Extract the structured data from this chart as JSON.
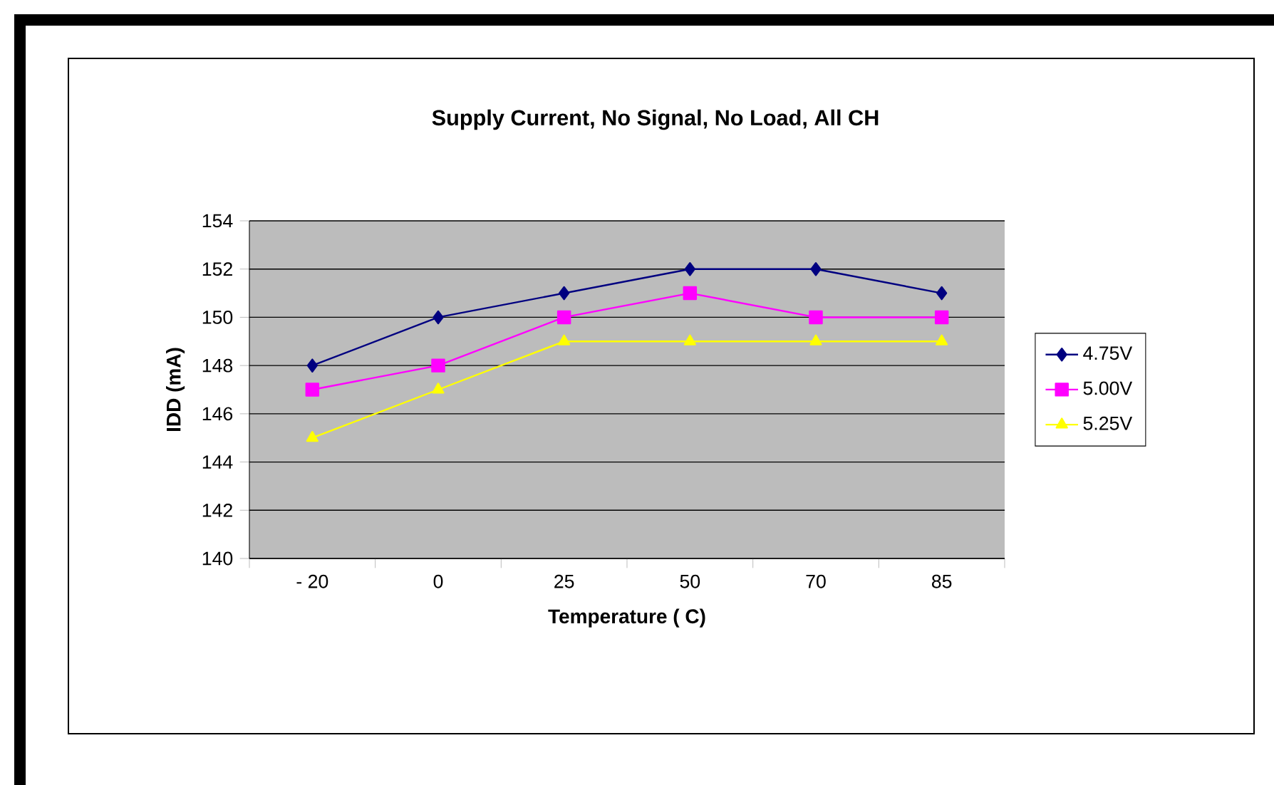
{
  "chart_data": {
    "type": "line",
    "title": "Supply Current, No Signal, No Load, All CH",
    "xlabel": "Temperature ( C)",
    "ylabel": "IDD (mA)",
    "categories": [
      "- 20",
      "0",
      "25",
      "50",
      "70",
      "85"
    ],
    "series": [
      {
        "name": "4.75V",
        "color": "#000080",
        "marker": "diamond",
        "values": [
          148,
          150,
          151,
          152,
          152,
          151
        ]
      },
      {
        "name": "5.00V",
        "color": "#ff00ff",
        "marker": "square",
        "values": [
          147,
          148,
          150,
          151,
          150,
          150
        ]
      },
      {
        "name": "5.25V",
        "color": "#ffff00",
        "marker": "triangle",
        "values": [
          145,
          147,
          149,
          149,
          149,
          149
        ]
      }
    ],
    "ylim": [
      140,
      154
    ],
    "yticks": [
      140,
      142,
      144,
      146,
      148,
      150,
      152,
      154
    ],
    "grid": "y",
    "legend": "right",
    "line_style": "solid"
  }
}
